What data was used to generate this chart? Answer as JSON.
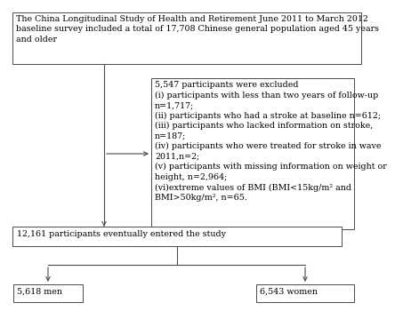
{
  "bg_color": "#ffffff",
  "border_color": "#4a4a4a",
  "arrow_color": "#4a4a4a",
  "box1_text": "The China Longitudinal Study of Health and Retirement June 2011 to March 2012\nbaseline survey included a total of 17,708 Chinese general population aged 45 years\nand older",
  "box2_text": "5,547 participants were excluded\n(i) participants with less than two years of follow-up\nn=1,717;\n(ii) participants who had a stroke at baseline n=612;\n(iii) participants who lacked information on stroke,\nn=187;\n(iv) participants who were treated for stroke in wave\n2011,n=2;\n(v) participants with missing information on weight or\nheight, n=2,964;\n(vi)extreme values of BMI (BMI<15kg/m² and\nBMI>50kg/m², n=65.",
  "box3_text": "12,161 participants eventually entered the study",
  "box4_text": "5,618 men",
  "box5_text": "6,543 women",
  "font_size": 6.8,
  "font_family": "DejaVu Serif"
}
